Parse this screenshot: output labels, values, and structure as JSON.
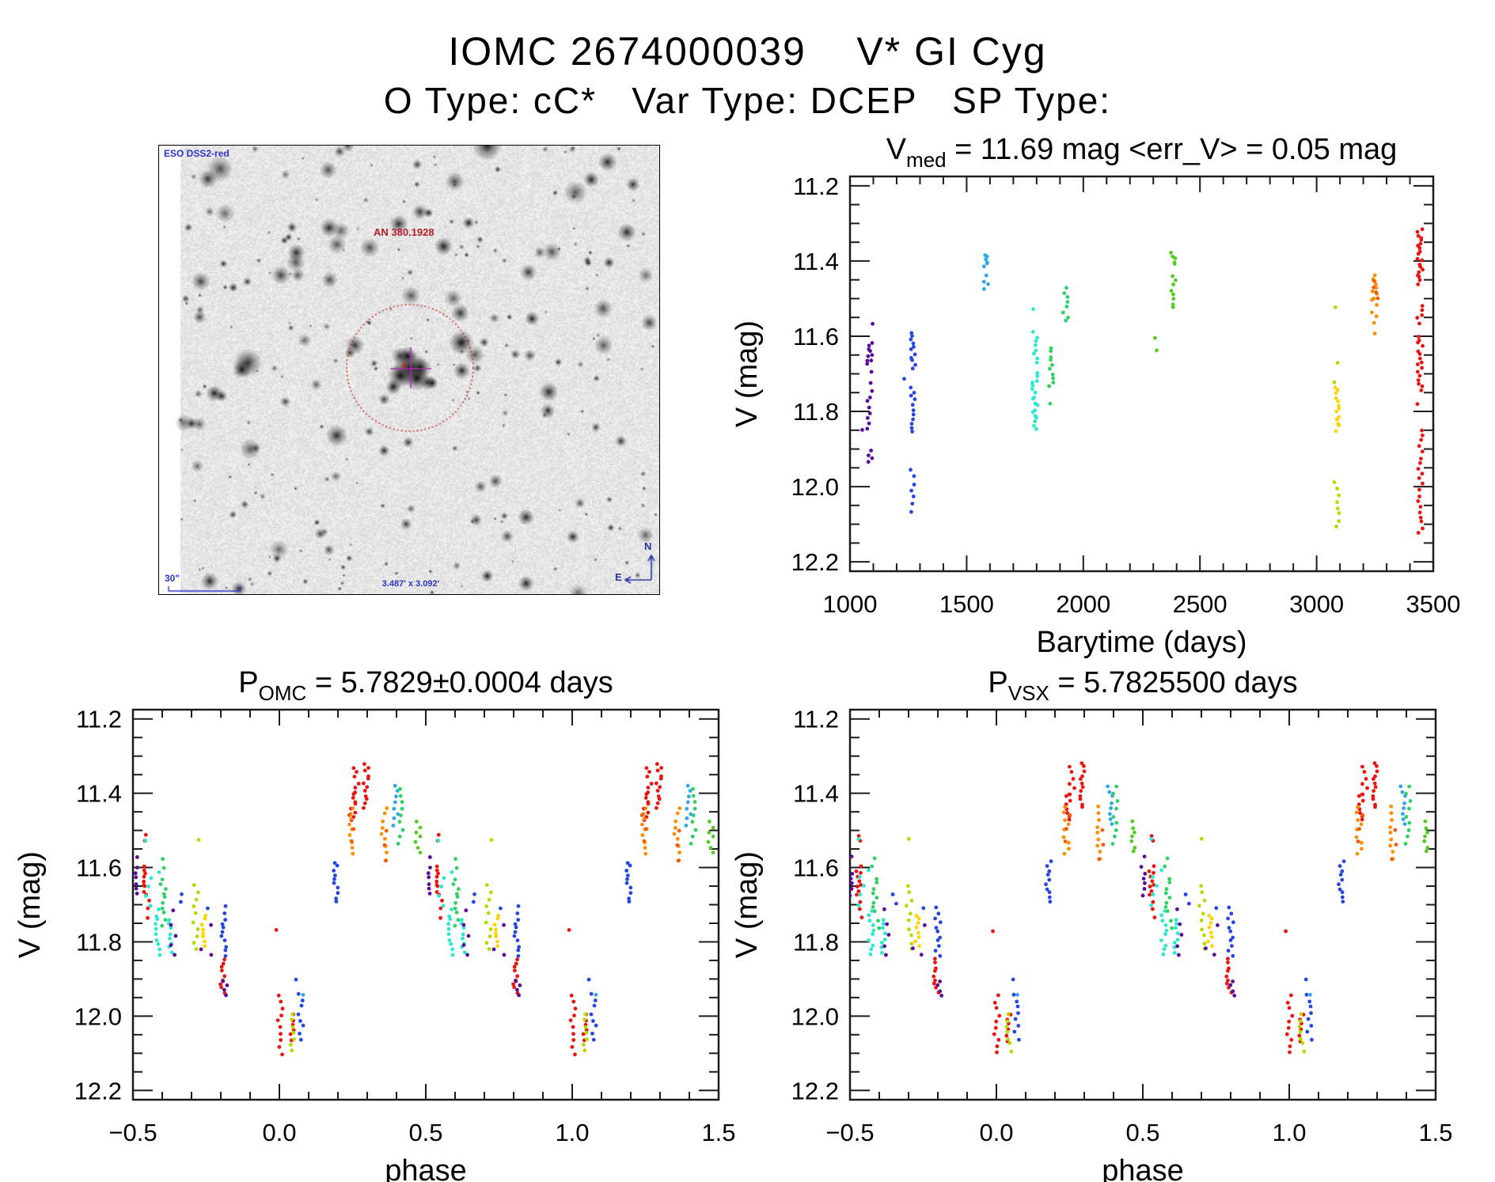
{
  "header": {
    "title": "IOMC 2674000039    V* GI Cyg",
    "subtitle": "O Type: cC*   Var Type: DCEP   SP Type:"
  },
  "finder": {
    "survey": "ESO DSS2-red",
    "target": "AN 380.1928",
    "scale_bar": "30\"",
    "fov": "3.487' x 3.092'",
    "compass_n": "N",
    "compass_e": "E",
    "colors": {
      "annotation_blue": "#2d35c8",
      "annotation_red": "#b32028",
      "circle_red": "#cc1515",
      "crosshair_magenta": "#b030b0",
      "compass_navy": "#28309e"
    }
  },
  "palette": {
    "p": "#5b0b9c",
    "b": "#2646e0",
    "s": "#2fa8ea",
    "c": "#2de8d0",
    "g1": "#2fd066",
    "g2": "#52cc1e",
    "yg": "#b6da00",
    "y": "#ffd400",
    "o": "#ff8d05",
    "o2": "#f25c0a",
    "r": "#ec1310"
  },
  "cluster_format": "[colorKey, x, y_mag_start, y_mag_end, n_points]",
  "chart_data": [
    {
      "id": "timeseries",
      "type": "scatter",
      "title": {
        "pre": "V",
        "sub": "med",
        "post": " = 11.69 mag <err_V> = 0.05 mag"
      },
      "xlabel": "Barytime (days)",
      "ylabel": "V (mag)",
      "xlim": [
        1000,
        3500
      ],
      "ylim_top": 11.175,
      "ylim_bottom": 12.225,
      "grid": false,
      "fold": false,
      "xticks": [
        1000,
        1500,
        2000,
        2500,
        3000,
        3500
      ],
      "xtick_labels": [
        "1000",
        "1500",
        "2000",
        "2500",
        "3000",
        "3500"
      ],
      "xminor": 100,
      "yticks": [
        11.2,
        11.4,
        11.6,
        11.8,
        12.0,
        12.2
      ],
      "ytick_labels": [
        "11.2",
        "11.4",
        "11.6",
        "11.8",
        "12.0",
        "12.2"
      ],
      "yminor": 0.05,
      "clusters": [
        [
          "p",
          1085,
          11.565,
          11.575,
          1
        ],
        [
          "p",
          1085,
          11.62,
          11.675,
          9
        ],
        [
          "p",
          1085,
          11.69,
          11.7,
          1
        ],
        [
          "p",
          1085,
          11.725,
          11.745,
          2
        ],
        [
          "p",
          1085,
          11.76,
          11.845,
          7
        ],
        [
          "p",
          1062,
          11.845,
          11.85,
          1
        ],
        [
          "p",
          1085,
          11.905,
          11.935,
          4
        ],
        [
          "b",
          1268,
          11.59,
          11.685,
          11
        ],
        [
          "b",
          1243,
          11.71,
          11.72,
          1
        ],
        [
          "b",
          1268,
          11.735,
          11.855,
          11
        ],
        [
          "b",
          1268,
          11.955,
          12.065,
          7
        ],
        [
          "s",
          1583,
          11.385,
          11.415,
          6
        ],
        [
          "s",
          1583,
          11.44,
          11.475,
          4
        ],
        [
          "c",
          1792,
          11.525,
          11.535,
          1
        ],
        [
          "c",
          1792,
          11.59,
          11.67,
          8
        ],
        [
          "c",
          1792,
          11.7,
          11.845,
          18
        ],
        [
          "g1",
          1925,
          11.47,
          11.56,
          8
        ],
        [
          "g1",
          1862,
          11.63,
          11.735,
          10
        ],
        [
          "g1",
          1862,
          11.775,
          11.785,
          1
        ],
        [
          "g2",
          2315,
          11.605,
          11.64,
          2
        ],
        [
          "g2",
          2385,
          11.38,
          11.41,
          5
        ],
        [
          "g2",
          2385,
          11.44,
          11.525,
          8
        ],
        [
          "yg",
          3085,
          11.515,
          11.525,
          1
        ],
        [
          "yg",
          3085,
          11.665,
          11.675,
          1
        ],
        [
          "yg",
          3085,
          11.715,
          11.725,
          1
        ],
        [
          "yg",
          3085,
          11.99,
          12.105,
          8
        ],
        [
          "y",
          3085,
          11.735,
          11.85,
          13
        ],
        [
          "o",
          3248,
          11.44,
          11.505,
          9
        ],
        [
          "o",
          3248,
          11.52,
          11.565,
          4
        ],
        [
          "o",
          3248,
          11.585,
          11.6,
          1
        ],
        [
          "o2",
          3252,
          11.455,
          11.5,
          4
        ],
        [
          "r",
          3443,
          11.315,
          11.46,
          20
        ],
        [
          "r",
          3443,
          11.52,
          11.565,
          5
        ],
        [
          "r",
          3443,
          11.6,
          11.745,
          16
        ],
        [
          "r",
          3443,
          11.775,
          11.785,
          1
        ],
        [
          "r",
          3443,
          11.85,
          12.125,
          20
        ]
      ]
    },
    {
      "id": "phase_omc",
      "type": "scatter",
      "title": {
        "pre": "P",
        "sub": "OMC",
        "post": " = 5.7829±0.0004 days"
      },
      "xlabel": "phase",
      "ylabel": "V (mag)",
      "xlim": [
        -0.5,
        1.5
      ],
      "ylim_top": 11.175,
      "ylim_bottom": 12.225,
      "grid": false,
      "fold": true,
      "xticks": [
        -0.5,
        0.0,
        0.5,
        1.0,
        1.5
      ],
      "xtick_labels": [
        "−0.5",
        "0.0",
        "0.5",
        "1.0",
        "1.5"
      ],
      "xminor": 0.1,
      "yticks": [
        11.2,
        11.4,
        11.6,
        11.8,
        12.0,
        12.2
      ],
      "ytick_labels": [
        "11.2",
        "11.4",
        "11.6",
        "11.8",
        "12.0",
        "12.2"
      ],
      "yminor": 0.05,
      "clusters": [
        [
          "p",
          -0.492,
          11.565,
          11.575,
          1
        ],
        [
          "p",
          -0.49,
          11.6,
          11.672,
          6
        ],
        [
          "r",
          -0.455,
          11.515,
          11.53,
          2
        ],
        [
          "r",
          -0.454,
          11.598,
          11.672,
          9
        ],
        [
          "r",
          -0.452,
          11.69,
          11.735,
          3
        ],
        [
          "c",
          -0.455,
          11.52,
          11.53,
          1
        ],
        [
          "c",
          -0.447,
          11.625,
          11.7,
          4
        ],
        [
          "c",
          -0.414,
          11.605,
          11.615,
          1
        ],
        [
          "c",
          -0.414,
          11.715,
          11.835,
          10
        ],
        [
          "g1",
          -0.4,
          11.578,
          11.6,
          2
        ],
        [
          "g1",
          -0.397,
          11.63,
          11.72,
          8
        ],
        [
          "g1",
          -0.394,
          11.74,
          11.76,
          2
        ],
        [
          "c",
          -0.37,
          11.738,
          11.83,
          8
        ],
        [
          "p",
          -0.368,
          11.708,
          11.72,
          1
        ],
        [
          "p",
          -0.362,
          11.755,
          11.838,
          4
        ],
        [
          "b",
          -0.338,
          11.668,
          11.678,
          1
        ],
        [
          "b",
          -0.333,
          11.69,
          11.7,
          1
        ],
        [
          "yg",
          -0.284,
          11.518,
          11.528,
          1
        ],
        [
          "yg",
          -0.286,
          11.648,
          11.822,
          10
        ],
        [
          "y",
          -0.256,
          11.728,
          11.812,
          8
        ],
        [
          "p",
          -0.268,
          11.815,
          11.825,
          1
        ],
        [
          "p",
          -0.238,
          11.758,
          11.832,
          2
        ],
        [
          "b",
          -0.246,
          11.705,
          11.715,
          1
        ],
        [
          "b",
          -0.19,
          11.7,
          11.71,
          1
        ],
        [
          "b",
          -0.19,
          11.725,
          11.835,
          10
        ],
        [
          "r",
          -0.195,
          11.848,
          11.935,
          9
        ],
        [
          "p",
          -0.184,
          11.908,
          11.942,
          4
        ],
        [
          "r",
          -0.005,
          11.765,
          11.775,
          1
        ],
        [
          "r",
          0.004,
          11.945,
          12.1,
          10
        ],
        [
          "r",
          0.042,
          11.995,
          12.065,
          6
        ],
        [
          "yg",
          0.047,
          11.995,
          12.092,
          7
        ],
        [
          "b",
          0.056,
          11.898,
          11.908,
          1
        ],
        [
          "b",
          0.072,
          11.94,
          12.062,
          8
        ],
        [
          "s",
          0.073,
          11.94,
          11.95,
          1
        ],
        [
          "b",
          0.192,
          11.585,
          11.692,
          10
        ],
        [
          "r",
          0.25,
          11.4,
          11.472,
          8
        ],
        [
          "r",
          0.262,
          11.33,
          11.4,
          6
        ],
        [
          "o",
          0.243,
          11.438,
          11.562,
          9
        ],
        [
          "o2",
          0.247,
          11.46,
          11.53,
          3
        ],
        [
          "r",
          0.296,
          11.318,
          11.44,
          12
        ],
        [
          "o",
          0.358,
          11.438,
          11.578,
          9
        ],
        [
          "o2",
          0.362,
          11.5,
          11.58,
          3
        ],
        [
          "s",
          0.396,
          11.38,
          11.485,
          8
        ],
        [
          "g1",
          0.414,
          11.385,
          11.535,
          9
        ],
        [
          "g2",
          0.472,
          11.478,
          11.558,
          7
        ]
      ]
    },
    {
      "id": "phase_vsx",
      "type": "scatter",
      "title": {
        "pre": "P",
        "sub": "VSX",
        "post": " = 5.7825500 days"
      },
      "xlabel": "phase",
      "ylabel": "V (mag)",
      "xlim": [
        -0.5,
        1.5
      ],
      "ylim_top": 11.175,
      "ylim_bottom": 12.225,
      "grid": false,
      "fold": true,
      "xticks": [
        -0.5,
        0.0,
        0.5,
        1.0,
        1.5
      ],
      "xtick_labels": [
        "−0.5",
        "0.0",
        "0.5",
        "1.0",
        "1.5"
      ],
      "xminor": 0.1,
      "yticks": [
        11.2,
        11.4,
        11.6,
        11.8,
        12.0,
        12.2
      ],
      "ytick_labels": [
        "11.2",
        "11.4",
        "11.6",
        "11.8",
        "12.0",
        "12.2"
      ],
      "yminor": 0.05,
      "clusters": [
        [
          "p",
          -0.498,
          11.565,
          11.575,
          1
        ],
        [
          "p",
          -0.496,
          11.6,
          11.672,
          6
        ],
        [
          "r",
          -0.472,
          11.515,
          11.53,
          2
        ],
        [
          "r",
          -0.47,
          11.598,
          11.672,
          9
        ],
        [
          "r",
          -0.468,
          11.69,
          11.735,
          3
        ],
        [
          "c",
          -0.47,
          11.52,
          11.53,
          1
        ],
        [
          "c",
          -0.462,
          11.625,
          11.7,
          4
        ],
        [
          "c",
          -0.43,
          11.605,
          11.615,
          1
        ],
        [
          "c",
          -0.428,
          11.715,
          11.835,
          10
        ],
        [
          "g1",
          -0.418,
          11.578,
          11.6,
          2
        ],
        [
          "g1",
          -0.414,
          11.63,
          11.72,
          8
        ],
        [
          "g1",
          -0.41,
          11.74,
          11.76,
          2
        ],
        [
          "c",
          -0.385,
          11.738,
          11.83,
          8
        ],
        [
          "p",
          -0.382,
          11.708,
          11.72,
          1
        ],
        [
          "p",
          -0.376,
          11.755,
          11.838,
          4
        ],
        [
          "b",
          -0.352,
          11.668,
          11.678,
          1
        ],
        [
          "b",
          -0.347,
          11.69,
          11.7,
          1
        ],
        [
          "yg",
          -0.296,
          11.518,
          11.528,
          1
        ],
        [
          "yg",
          -0.298,
          11.648,
          11.822,
          10
        ],
        [
          "y",
          -0.268,
          11.728,
          11.812,
          8
        ],
        [
          "p",
          -0.28,
          11.815,
          11.825,
          1
        ],
        [
          "p",
          -0.25,
          11.758,
          11.832,
          2
        ],
        [
          "b",
          -0.258,
          11.705,
          11.715,
          1
        ],
        [
          "b",
          -0.2,
          11.7,
          11.71,
          1
        ],
        [
          "b",
          -0.2,
          11.725,
          11.835,
          10
        ],
        [
          "r",
          -0.205,
          11.848,
          11.935,
          9
        ],
        [
          "p",
          -0.194,
          11.908,
          11.942,
          4
        ],
        [
          "r",
          -0.005,
          11.765,
          11.775,
          1
        ],
        [
          "r",
          0.002,
          11.945,
          12.1,
          10
        ],
        [
          "r",
          0.04,
          11.995,
          12.065,
          6
        ],
        [
          "yg",
          0.044,
          11.995,
          12.092,
          7
        ],
        [
          "b",
          0.054,
          11.898,
          11.908,
          1
        ],
        [
          "b",
          0.068,
          11.94,
          12.062,
          8
        ],
        [
          "s",
          0.07,
          11.94,
          11.95,
          1
        ],
        [
          "b",
          0.178,
          11.585,
          11.692,
          10
        ],
        [
          "r",
          0.245,
          11.4,
          11.472,
          8
        ],
        [
          "r",
          0.257,
          11.33,
          11.4,
          6
        ],
        [
          "o",
          0.238,
          11.438,
          11.562,
          9
        ],
        [
          "o2",
          0.242,
          11.46,
          11.53,
          3
        ],
        [
          "r",
          0.292,
          11.318,
          11.44,
          12
        ],
        [
          "o",
          0.352,
          11.438,
          11.578,
          9
        ],
        [
          "o2",
          0.356,
          11.5,
          11.58,
          3
        ],
        [
          "s",
          0.388,
          11.38,
          11.485,
          8
        ],
        [
          "g1",
          0.406,
          11.385,
          11.535,
          9
        ],
        [
          "g2",
          0.465,
          11.478,
          11.558,
          7
        ]
      ]
    }
  ]
}
